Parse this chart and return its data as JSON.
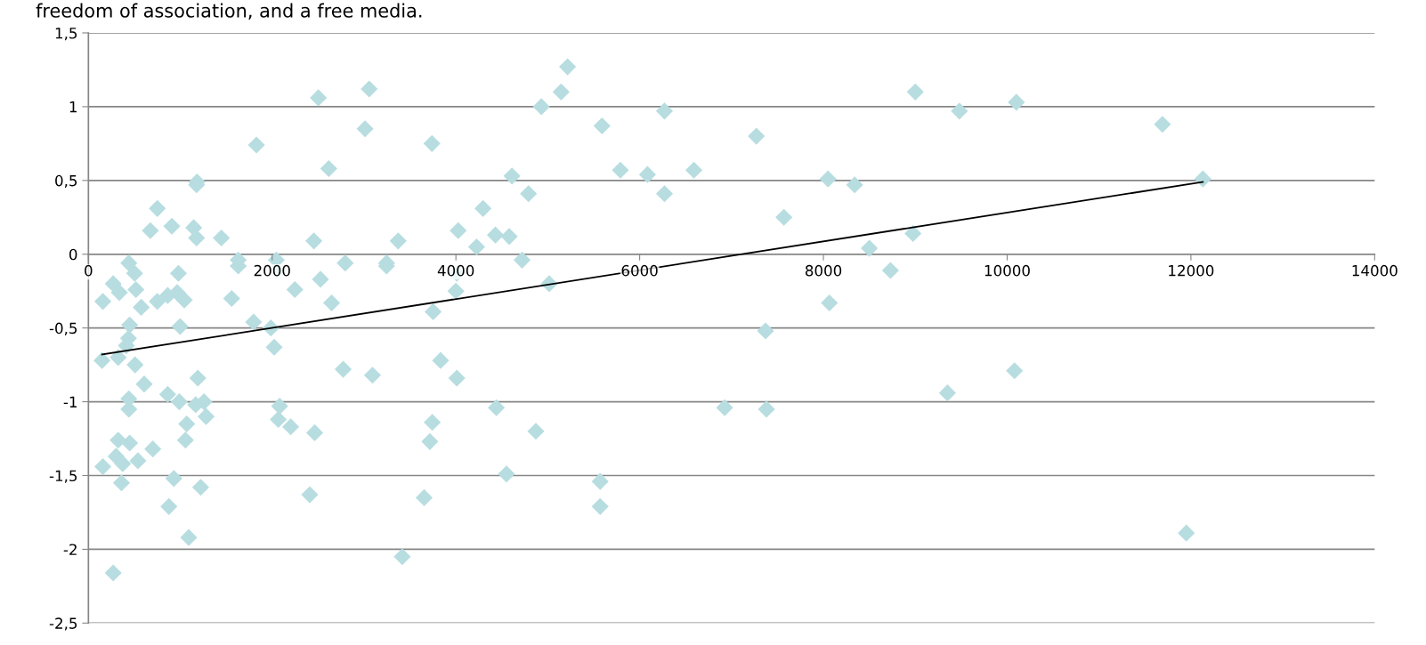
{
  "chart_data": {
    "type": "scatter",
    "annotations": [
      "freedom of association, and a free media."
    ],
    "xlim": [
      0,
      14000
    ],
    "xticks": [
      0,
      2000,
      4000,
      6000,
      8000,
      10000,
      12000,
      14000
    ],
    "ylim": [
      -2.5,
      1.5
    ],
    "yticks": [
      {
        "value": -2.5,
        "label": "-2,5"
      },
      -2,
      {
        "value": -1.5,
        "label": "-1,5"
      },
      -1,
      {
        "value": -0.5,
        "label": "-0,5"
      },
      0,
      {
        "value": 0.5,
        "label": "0,5"
      },
      1,
      {
        "value": 1.5,
        "label": "1,5"
      }
    ],
    "grid": "y",
    "legend": false,
    "series": [
      {
        "marker": "diamond",
        "color": "#b7dde0",
        "x": [
          157,
          148,
          157,
          270,
          270,
          337,
          324,
          324,
          301,
          373,
          360,
          440,
          503,
          517,
          575,
          449,
          436,
          413,
          508,
          607,
          440,
          440,
          449,
          539,
          701,
          674,
          750,
          908,
          750,
          863,
          966,
          1043,
          980,
          998,
          863,
          989,
          876,
          930,
          1070,
          1056,
          1092,
          1182,
          1177,
          1146,
          1177,
          1191,
          1168,
          1258,
          1281,
          1222,
          1447,
          1559,
          1631,
          1631,
          1829,
          1798,
          1986,
          2022,
          2045,
          2045,
          2247,
          2081,
          2067,
          2202,
          2463,
          2409,
          2454,
          2503,
          2526,
          2616,
          2647,
          2795,
          2773,
          3011,
          3056,
          3092,
          3245,
          3245,
          3371,
          3416,
          3739,
          3752,
          3716,
          3743,
          3654,
          3833,
          4025,
          4010,
          4000,
          4010,
          4295,
          4225,
          4430,
          4440,
          4610,
          4580,
          4550,
          4720,
          4790,
          4870,
          4930,
          5015,
          5145,
          5215,
          5570,
          5570,
          5590,
          5790,
          6085,
          6270,
          6270,
          6590,
          6925,
          7270,
          7370,
          7380,
          7570,
          8050,
          8065,
          8340,
          8500,
          8730,
          8975,
          9000,
          9350,
          9480,
          10080,
          10100,
          11690,
          11950,
          12130
        ],
        "values": [
          -0.32,
          -0.72,
          -1.44,
          -2.16,
          -0.2,
          -0.26,
          -0.7,
          -1.26,
          -1.37,
          -1.42,
          -1.55,
          -0.06,
          -0.13,
          -0.24,
          -0.36,
          -0.48,
          -0.57,
          -0.62,
          -0.75,
          -0.88,
          -0.98,
          -1.05,
          -1.28,
          -1.4,
          -1.32,
          0.16,
          0.31,
          0.19,
          -0.32,
          -0.28,
          -0.26,
          -0.31,
          -0.13,
          -0.49,
          -0.95,
          -1.0,
          -1.71,
          -1.52,
          -1.15,
          -1.26,
          -1.92,
          0.49,
          0.47,
          0.18,
          0.11,
          -0.84,
          -1.02,
          -1.0,
          -1.1,
          -1.58,
          0.11,
          -0.3,
          -0.04,
          -0.08,
          0.74,
          -0.46,
          -0.5,
          -0.63,
          -0.04,
          -0.11,
          -0.24,
          -1.03,
          -1.12,
          -1.17,
          -1.21,
          -1.63,
          0.09,
          1.06,
          -0.17,
          0.58,
          -0.33,
          -0.06,
          -0.78,
          0.85,
          1.12,
          -0.82,
          -0.06,
          -0.08,
          0.09,
          -2.05,
          0.75,
          -0.39,
          -1.27,
          -1.14,
          -1.65,
          -0.72,
          0.16,
          -0.13,
          -0.25,
          -0.84,
          0.31,
          0.05,
          0.13,
          -1.04,
          0.53,
          0.12,
          -1.49,
          -0.04,
          0.41,
          -1.2,
          1.0,
          -0.2,
          1.1,
          1.27,
          -1.54,
          -1.71,
          0.87,
          0.57,
          0.54,
          0.97,
          0.41,
          0.57,
          -1.04,
          0.8,
          -0.52,
          -1.05,
          0.25,
          0.51,
          -0.33,
          0.47,
          0.04,
          -0.11,
          0.14,
          1.1,
          -0.94,
          0.97,
          -0.79,
          1.03,
          0.88,
          -1.89,
          0.51
        ]
      },
      {
        "type": "line",
        "marker": "none",
        "line_style": "solid",
        "color": "#000000",
        "x": [
          148,
          12130
        ],
        "values": [
          -0.68,
          0.49
        ]
      }
    ]
  }
}
